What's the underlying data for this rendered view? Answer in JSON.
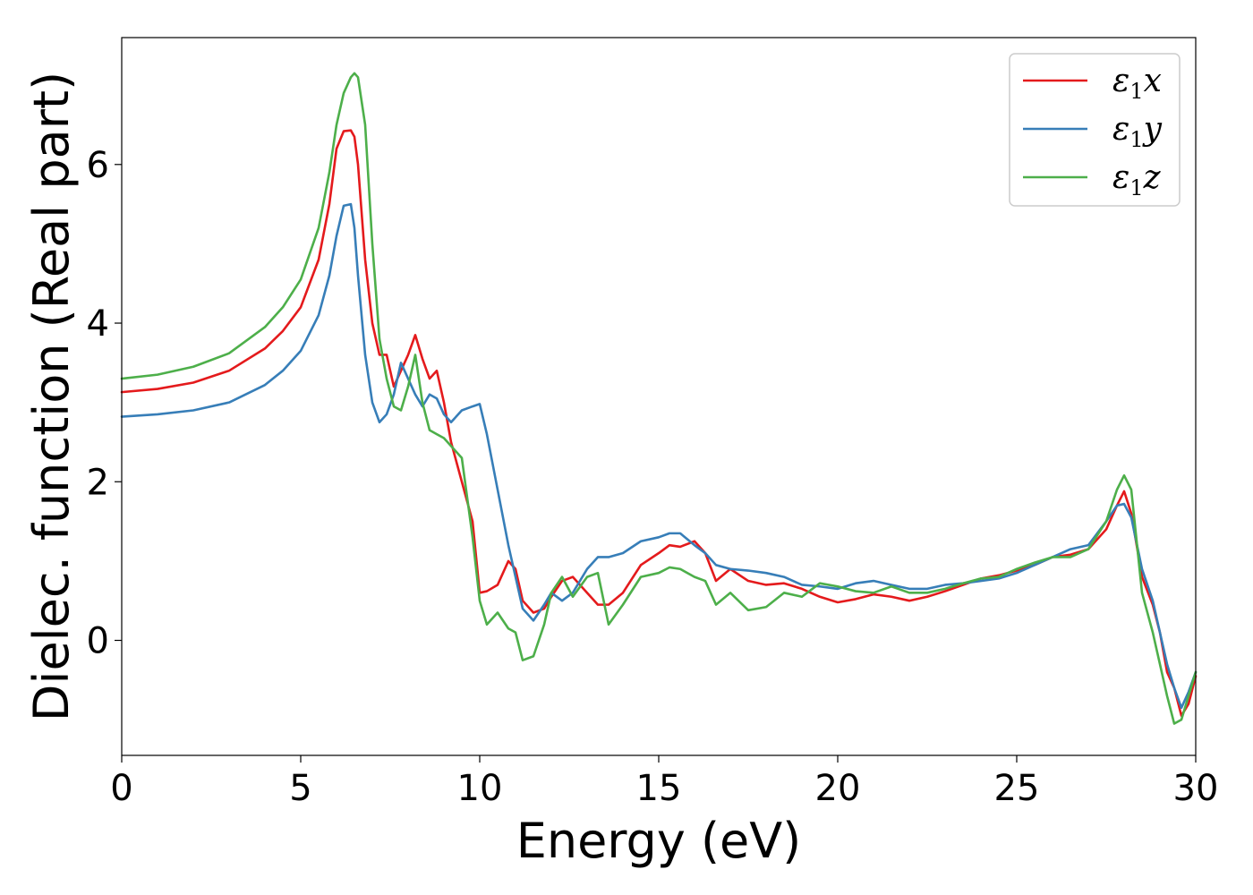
{
  "chart_data": {
    "type": "line",
    "title": "",
    "xlabel": "Energy (eV)",
    "ylabel": "Dielec. function (Real part)",
    "xlim": [
      0,
      30
    ],
    "ylim": [
      -1.45,
      7.6
    ],
    "xticks": [
      0,
      5,
      10,
      15,
      20,
      25,
      30
    ],
    "yticks": [
      0,
      2,
      4,
      6
    ],
    "grid": false,
    "legend": {
      "position": "top-right"
    },
    "series": [
      {
        "name": "ε1x",
        "legend_main": "ε",
        "legend_sub": "1",
        "legend_tail": "x",
        "color": "#e41a1c",
        "x": [
          0,
          1,
          2,
          3,
          4,
          4.5,
          5,
          5.5,
          5.8,
          6.0,
          6.2,
          6.4,
          6.5,
          6.6,
          6.8,
          7.0,
          7.2,
          7.4,
          7.6,
          7.8,
          8.0,
          8.2,
          8.4,
          8.6,
          8.8,
          9.0,
          9.2,
          9.5,
          9.8,
          10.0,
          10.2,
          10.5,
          10.8,
          11.0,
          11.2,
          11.5,
          11.8,
          12.0,
          12.3,
          12.6,
          13.0,
          13.3,
          13.6,
          14.0,
          14.5,
          15.0,
          15.3,
          15.6,
          16.0,
          16.3,
          16.6,
          17.0,
          17.5,
          18.0,
          18.5,
          19.0,
          19.5,
          20.0,
          20.5,
          21.0,
          21.5,
          22.0,
          22.5,
          23.0,
          23.5,
          24.0,
          24.5,
          25.0,
          25.5,
          26.0,
          26.5,
          27.0,
          27.5,
          27.8,
          28.0,
          28.2,
          28.5,
          28.8,
          29.0,
          29.2,
          29.4,
          29.6,
          29.8,
          30.0
        ],
        "y": [
          3.13,
          3.17,
          3.25,
          3.4,
          3.68,
          3.9,
          4.2,
          4.8,
          5.5,
          6.2,
          6.42,
          6.43,
          6.35,
          6.0,
          4.8,
          4.0,
          3.6,
          3.6,
          3.2,
          3.4,
          3.6,
          3.85,
          3.55,
          3.3,
          3.4,
          3.0,
          2.5,
          2.0,
          1.5,
          0.6,
          0.62,
          0.7,
          1.0,
          0.9,
          0.5,
          0.35,
          0.4,
          0.55,
          0.75,
          0.8,
          0.6,
          0.45,
          0.45,
          0.6,
          0.95,
          1.1,
          1.2,
          1.18,
          1.25,
          1.1,
          0.75,
          0.9,
          0.75,
          0.7,
          0.72,
          0.65,
          0.55,
          0.48,
          0.52,
          0.58,
          0.55,
          0.5,
          0.55,
          0.62,
          0.7,
          0.78,
          0.82,
          0.88,
          0.95,
          1.05,
          1.08,
          1.15,
          1.4,
          1.7,
          1.88,
          1.6,
          0.8,
          0.45,
          0.1,
          -0.4,
          -0.6,
          -0.95,
          -0.8,
          -0.45
        ]
      },
      {
        "name": "ε1y",
        "legend_main": "ε",
        "legend_sub": "1",
        "legend_tail": "y",
        "color": "#377eb8",
        "x": [
          0,
          1,
          2,
          3,
          4,
          4.5,
          5,
          5.5,
          5.8,
          6.0,
          6.2,
          6.4,
          6.5,
          6.6,
          6.8,
          7.0,
          7.2,
          7.4,
          7.6,
          7.8,
          8.0,
          8.2,
          8.4,
          8.6,
          8.8,
          9.0,
          9.2,
          9.5,
          9.8,
          10.0,
          10.2,
          10.5,
          10.8,
          11.0,
          11.2,
          11.5,
          11.8,
          12.0,
          12.3,
          12.6,
          13.0,
          13.3,
          13.6,
          14.0,
          14.5,
          15.0,
          15.3,
          15.6,
          16.0,
          16.3,
          16.6,
          17.0,
          17.5,
          18.0,
          18.5,
          19.0,
          19.5,
          20.0,
          20.5,
          21.0,
          21.5,
          22.0,
          22.5,
          23.0,
          23.5,
          24.0,
          24.5,
          25.0,
          25.5,
          26.0,
          26.5,
          27.0,
          27.5,
          27.8,
          28.0,
          28.2,
          28.5,
          28.8,
          29.0,
          29.2,
          29.4,
          29.6,
          29.8,
          30.0
        ],
        "y": [
          2.82,
          2.85,
          2.9,
          3.0,
          3.22,
          3.4,
          3.65,
          4.1,
          4.6,
          5.1,
          5.48,
          5.5,
          5.2,
          4.6,
          3.6,
          3.0,
          2.75,
          2.85,
          3.1,
          3.5,
          3.3,
          3.1,
          2.95,
          3.1,
          3.05,
          2.85,
          2.75,
          2.9,
          2.95,
          2.98,
          2.6,
          1.9,
          1.2,
          0.8,
          0.4,
          0.25,
          0.45,
          0.6,
          0.5,
          0.6,
          0.9,
          1.05,
          1.05,
          1.1,
          1.25,
          1.3,
          1.35,
          1.35,
          1.2,
          1.1,
          0.95,
          0.9,
          0.88,
          0.85,
          0.8,
          0.7,
          0.68,
          0.65,
          0.72,
          0.75,
          0.7,
          0.65,
          0.65,
          0.7,
          0.72,
          0.75,
          0.78,
          0.85,
          0.95,
          1.05,
          1.15,
          1.2,
          1.5,
          1.7,
          1.72,
          1.55,
          0.9,
          0.5,
          0.1,
          -0.3,
          -0.6,
          -0.85,
          -0.65,
          -0.4
        ]
      },
      {
        "name": "ε1z",
        "legend_main": "ε",
        "legend_sub": "1",
        "legend_tail": "z",
        "color": "#4daf4a",
        "x": [
          0,
          1,
          2,
          3,
          4,
          4.5,
          5,
          5.5,
          5.8,
          6.0,
          6.2,
          6.4,
          6.5,
          6.6,
          6.8,
          7.0,
          7.2,
          7.4,
          7.6,
          7.8,
          8.0,
          8.2,
          8.4,
          8.6,
          8.8,
          9.0,
          9.2,
          9.5,
          9.8,
          10.0,
          10.2,
          10.5,
          10.8,
          11.0,
          11.2,
          11.5,
          11.8,
          12.0,
          12.3,
          12.6,
          13.0,
          13.3,
          13.6,
          14.0,
          14.5,
          15.0,
          15.3,
          15.6,
          16.0,
          16.3,
          16.6,
          17.0,
          17.5,
          18.0,
          18.5,
          19.0,
          19.5,
          20.0,
          20.5,
          21.0,
          21.5,
          22.0,
          22.5,
          23.0,
          23.5,
          24.0,
          24.5,
          25.0,
          25.5,
          26.0,
          26.5,
          27.0,
          27.5,
          27.8,
          28.0,
          28.2,
          28.5,
          28.8,
          29.0,
          29.2,
          29.4,
          29.6,
          29.8,
          30.0
        ],
        "y": [
          3.3,
          3.35,
          3.45,
          3.62,
          3.95,
          4.2,
          4.55,
          5.2,
          5.9,
          6.5,
          6.9,
          7.1,
          7.15,
          7.1,
          6.5,
          5.0,
          3.8,
          3.3,
          2.95,
          2.9,
          3.2,
          3.6,
          3.0,
          2.65,
          2.6,
          2.55,
          2.45,
          2.3,
          1.3,
          0.5,
          0.2,
          0.35,
          0.15,
          0.1,
          -0.25,
          -0.2,
          0.2,
          0.6,
          0.8,
          0.55,
          0.8,
          0.85,
          0.2,
          0.45,
          0.8,
          0.85,
          0.92,
          0.9,
          0.8,
          0.75,
          0.45,
          0.6,
          0.38,
          0.42,
          0.6,
          0.55,
          0.72,
          0.68,
          0.62,
          0.6,
          0.68,
          0.6,
          0.6,
          0.65,
          0.72,
          0.78,
          0.8,
          0.9,
          0.98,
          1.05,
          1.05,
          1.15,
          1.5,
          1.9,
          2.08,
          1.9,
          0.6,
          0.1,
          -0.3,
          -0.7,
          -1.05,
          -1.0,
          -0.7,
          -0.4
        ]
      }
    ]
  }
}
